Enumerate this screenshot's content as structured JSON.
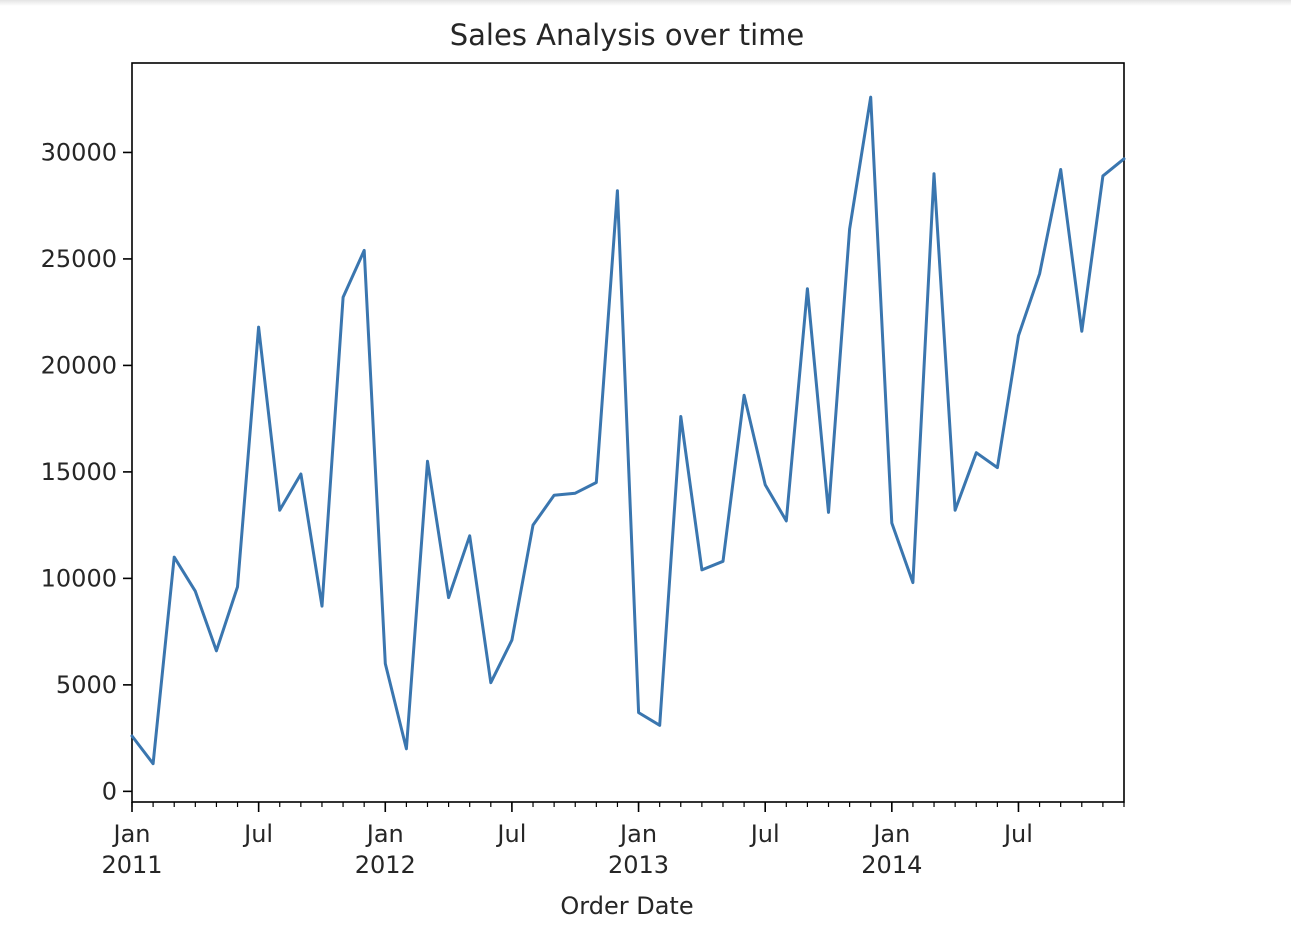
{
  "chart_data": {
    "type": "line",
    "title": "Sales Analysis over time",
    "xlabel": "Order Date",
    "ylabel": "",
    "grid": false,
    "line_color": "#3a76af",
    "xlim": [
      "2011-01",
      "2014-12"
    ],
    "ylim": [
      -500,
      34200
    ],
    "y_ticks": [
      {
        "value": 0,
        "label": "0"
      },
      {
        "value": 5000,
        "label": "5000"
      },
      {
        "value": 10000,
        "label": "10000"
      },
      {
        "value": 15000,
        "label": "15000"
      },
      {
        "value": 20000,
        "label": "20000"
      },
      {
        "value": 25000,
        "label": "25000"
      },
      {
        "value": 30000,
        "label": "30000"
      }
    ],
    "x_major_ticks": [
      {
        "date": "2011-01",
        "label": "Jan",
        "sublabel": "2011"
      },
      {
        "date": "2011-07",
        "label": "Jul",
        "sublabel": ""
      },
      {
        "date": "2012-01",
        "label": "Jan",
        "sublabel": "2012"
      },
      {
        "date": "2012-07",
        "label": "Jul",
        "sublabel": ""
      },
      {
        "date": "2013-01",
        "label": "Jan",
        "sublabel": "2013"
      },
      {
        "date": "2013-07",
        "label": "Jul",
        "sublabel": ""
      },
      {
        "date": "2014-01",
        "label": "Jan",
        "sublabel": "2014"
      },
      {
        "date": "2014-07",
        "label": "Jul",
        "sublabel": ""
      }
    ],
    "series": [
      {
        "x": [
          "2011-01",
          "2011-02",
          "2011-03",
          "2011-04",
          "2011-05",
          "2011-06",
          "2011-07",
          "2011-08",
          "2011-09",
          "2011-10",
          "2011-11",
          "2011-12",
          "2012-01",
          "2012-02",
          "2012-03",
          "2012-04",
          "2012-05",
          "2012-06",
          "2012-07",
          "2012-08",
          "2012-09",
          "2012-10",
          "2012-11",
          "2012-12",
          "2013-01",
          "2013-02",
          "2013-03",
          "2013-04",
          "2013-05",
          "2013-06",
          "2013-07",
          "2013-08",
          "2013-09",
          "2013-10",
          "2013-11",
          "2013-12",
          "2014-01",
          "2014-02",
          "2014-03",
          "2014-04",
          "2014-05",
          "2014-06",
          "2014-07",
          "2014-08",
          "2014-09",
          "2014-10",
          "2014-11",
          "2014-12"
        ],
        "values": [
          2600,
          1300,
          11000,
          9400,
          6600,
          9600,
          21800,
          13200,
          14900,
          8700,
          23200,
          25400,
          6000,
          2000,
          15500,
          9100,
          12000,
          5100,
          7100,
          12500,
          13900,
          14000,
          14500,
          28200,
          3700,
          3100,
          17600,
          10400,
          10800,
          18600,
          14400,
          12700,
          23600,
          13100,
          26400,
          32600,
          12600,
          9800,
          29000,
          13200,
          15900,
          15200,
          21400,
          24300,
          29200,
          21600,
          28900,
          29700
        ]
      }
    ]
  }
}
